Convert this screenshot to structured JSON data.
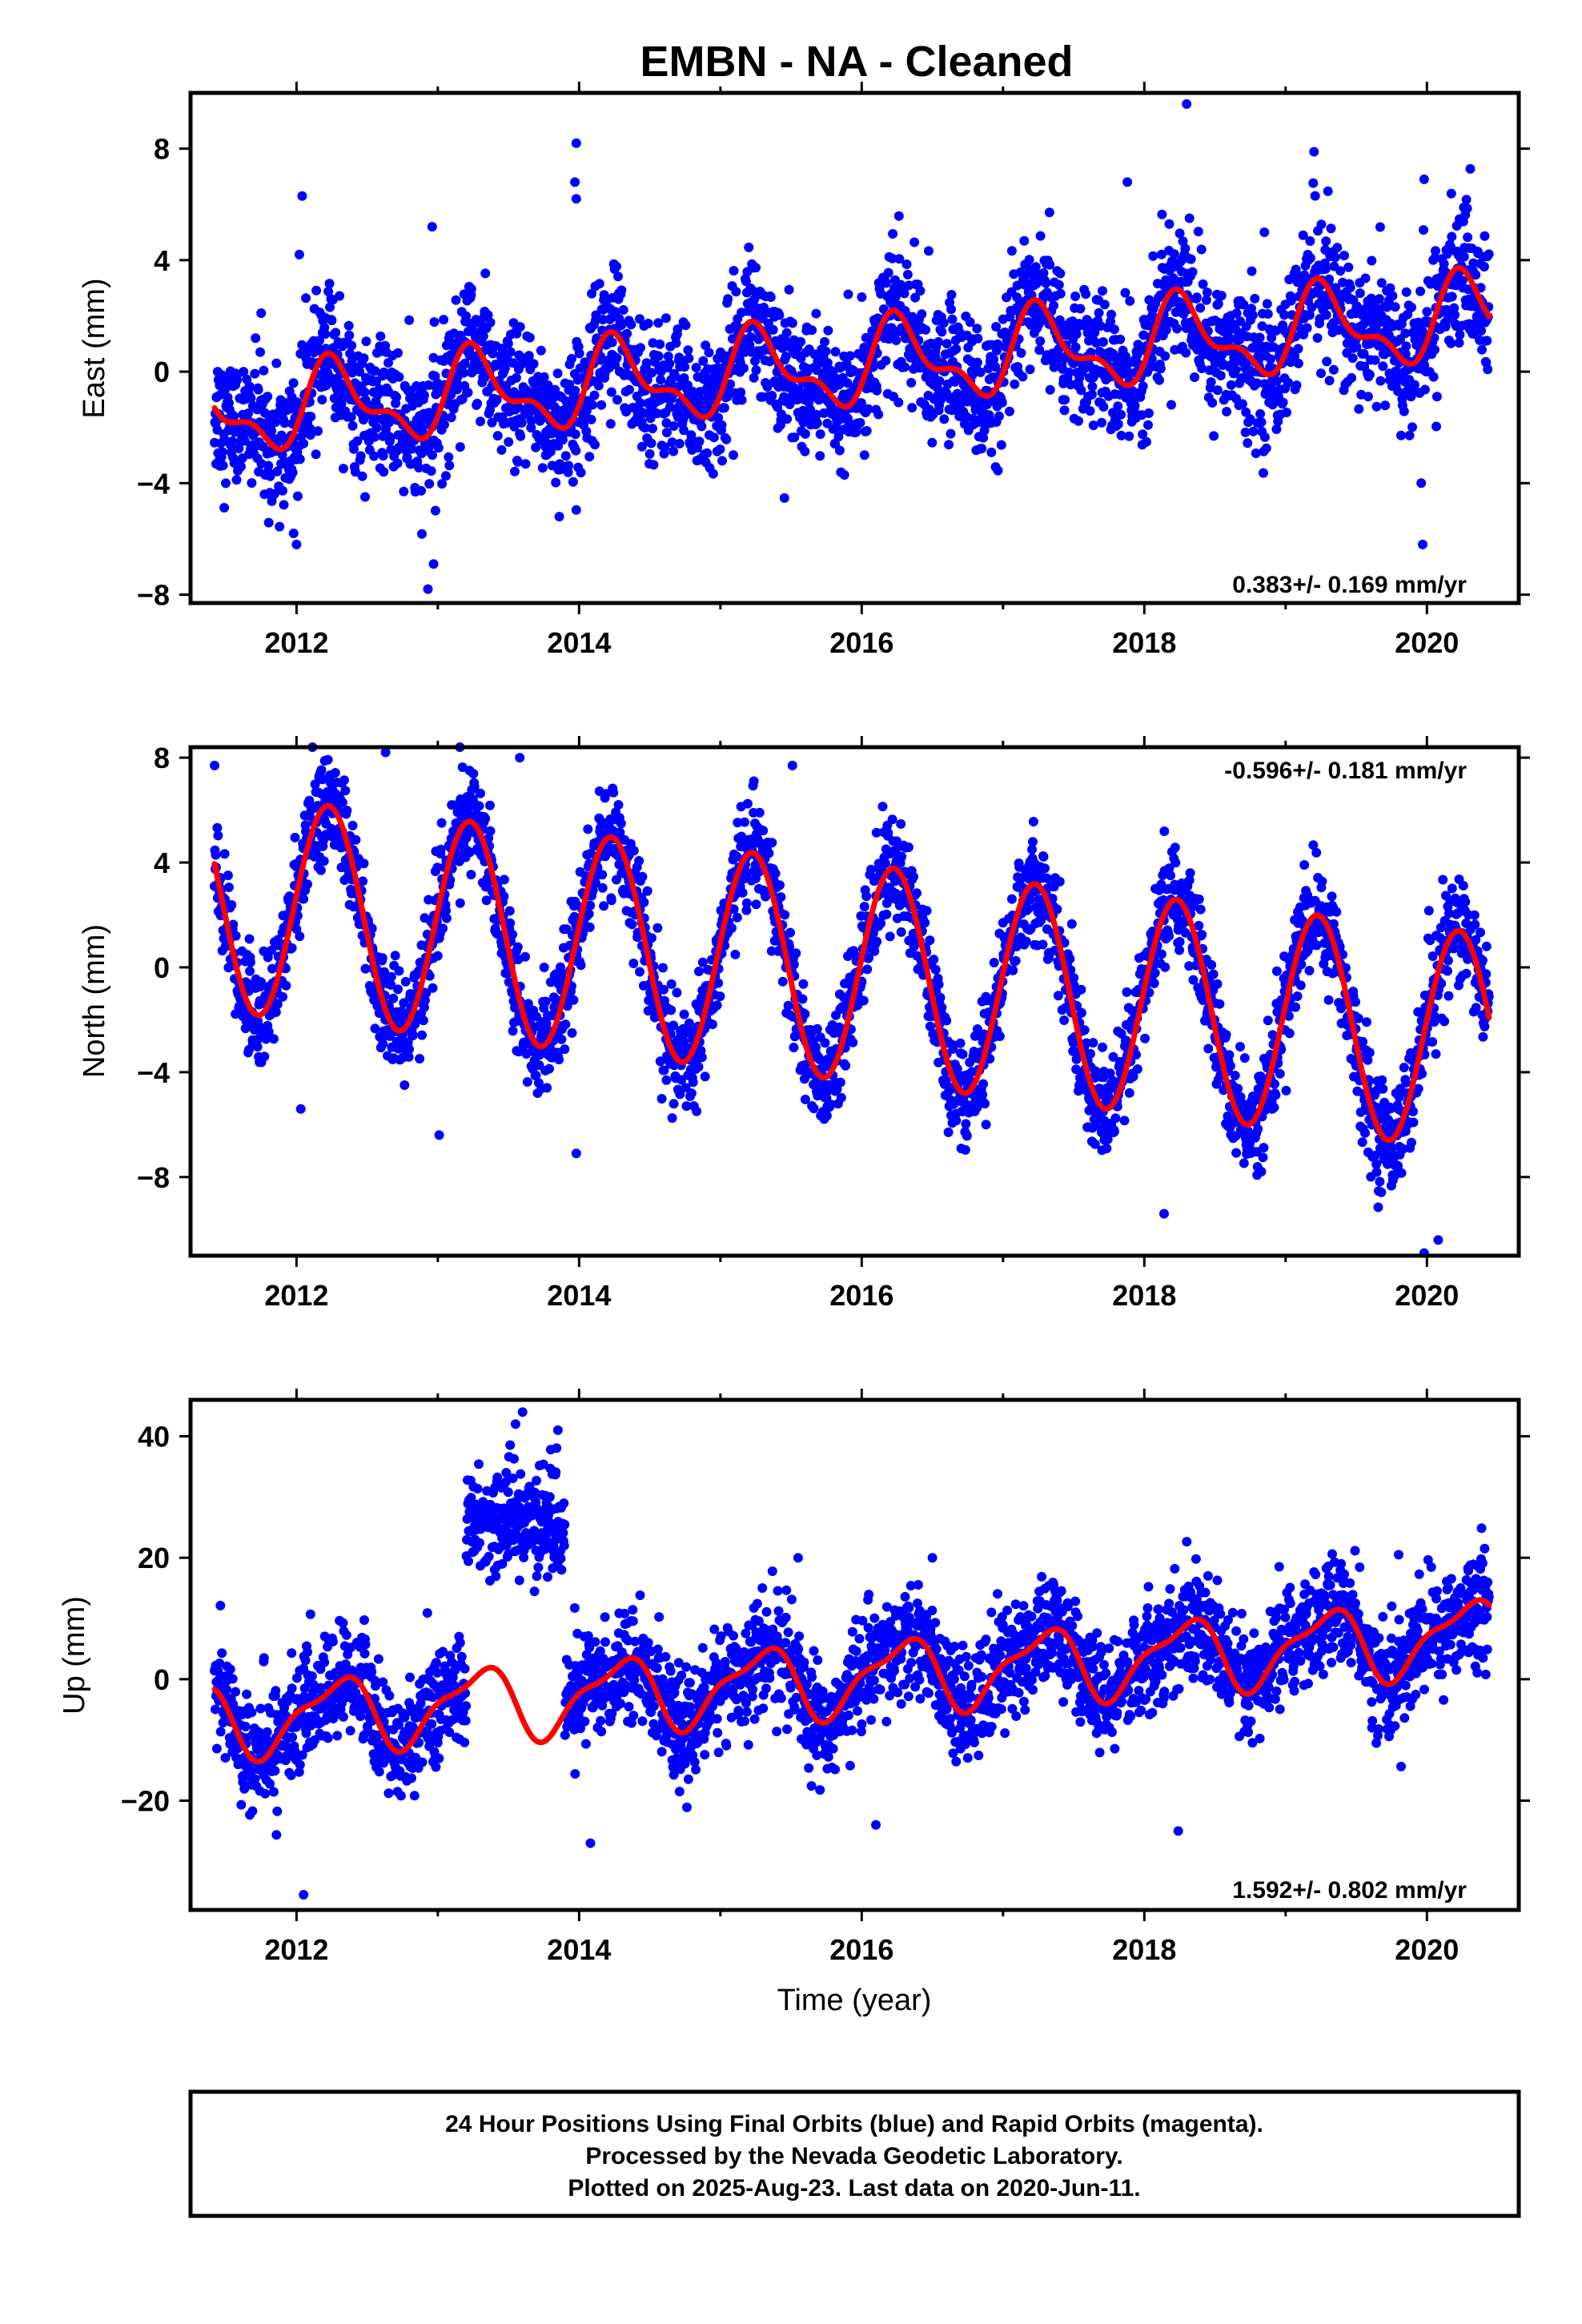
{
  "title": "EMBN  - NA - Cleaned",
  "chart_data": [
    {
      "type": "scatter",
      "panel": "east",
      "ylabel": "East (mm)",
      "xlim": [
        2011.25,
        2020.65
      ],
      "ylim": [
        -8.3,
        10.0
      ],
      "yticks": [
        -8,
        -4,
        0,
        4,
        8
      ],
      "xticks": [
        2012,
        2014,
        2016,
        2018,
        2020
      ],
      "rate_text": "0.383+/- 0.169 mm/yr",
      "rate_position": "bottom-right",
      "series": [
        {
          "color": "#0000ff",
          "style": "points",
          "x_range": [
            2011.42,
            2020.44
          ],
          "gaps": [],
          "outliers": [
            [
              2011.75,
              2.1
            ],
            [
              2012.04,
              6.3
            ],
            [
              2012.02,
              4.2
            ],
            [
              2012.96,
              5.2
            ],
            [
              2012.93,
              -7.8
            ],
            [
              2012.97,
              -6.9
            ],
            [
              2013.98,
              8.2
            ],
            [
              2013.97,
              6.8
            ],
            [
              2013.98,
              6.2
            ],
            [
              2013.86,
              -5.2
            ],
            [
              2017.88,
              6.8
            ],
            [
              2018.3,
              9.6
            ],
            [
              2018.85,
              5.0
            ],
            [
              2019.98,
              6.9
            ],
            [
              2019.97,
              -6.2
            ],
            [
              2019.96,
              -4.0
            ],
            [
              2012.0,
              -6.2
            ],
            [
              2011.98,
              -5.8
            ]
          ]
        },
        {
          "color": "#ff0000",
          "style": "line",
          "model": {
            "x0": 2011.42,
            "offset": -1.5,
            "trend": 0.383,
            "annual_cos": -0.2,
            "annual_sin": 1.3,
            "semi_cos": -0.5,
            "semi_sin": 0.4,
            "scatter": 1.2
          }
        }
      ]
    },
    {
      "type": "scatter",
      "panel": "north",
      "ylabel": "North (mm)",
      "xlim": [
        2011.25,
        2020.65
      ],
      "ylim": [
        -11.0,
        8.4
      ],
      "yticks": [
        -8,
        -4,
        0,
        4,
        8
      ],
      "xticks": [
        2012,
        2014,
        2016,
        2018,
        2020
      ],
      "rate_text": "-0.596+/- 0.181 mm/yr",
      "rate_position": "top-right",
      "series": [
        {
          "color": "#0000ff",
          "style": "points",
          "x_range": [
            2011.42,
            2020.44
          ],
          "gaps": [],
          "outliers": [
            [
              2012.63,
              8.2
            ],
            [
              2013.98,
              -7.1
            ],
            [
              2012.03,
              -5.4
            ],
            [
              2013.01,
              -6.4
            ],
            [
              2018.14,
              -9.4
            ],
            [
              2019.98,
              -10.9
            ],
            [
              2020.08,
              -10.4
            ],
            [
              2016.88,
              -6.0
            ],
            [
              2011.42,
              7.7
            ],
            [
              2015.51,
              7.7
            ],
            [
              2013.58,
              8.0
            ]
          ]
        },
        {
          "color": "#ff0000",
          "style": "line",
          "model": {
            "x0": 2011.42,
            "offset": 2.5,
            "trend": -0.596,
            "annual_cos": 0.6,
            "annual_sin": 4.1,
            "semi_cos": 0.0,
            "semi_sin": 0.0,
            "scatter": 1.0
          }
        }
      ]
    },
    {
      "type": "scatter",
      "panel": "up",
      "ylabel": "Up (mm)",
      "xlabel": "Time (year)",
      "xlim": [
        2011.25,
        2020.65
      ],
      "ylim": [
        -38.0,
        46.0
      ],
      "yticks": [
        -20,
        0,
        20,
        40
      ],
      "xticks": [
        2012,
        2014,
        2016,
        2018,
        2020
      ],
      "rate_text": "1.592+/- 0.802 mm/yr",
      "rate_position": "bottom-right",
      "series": [
        {
          "color": "#0000ff",
          "style": "points",
          "x_range": [
            2011.42,
            2020.44
          ],
          "offset_segments": [
            {
              "x_range": [
                2013.2,
                2013.9
              ],
              "level": 26.0,
              "spread": 6.0
            }
          ],
          "outliers": [
            [
              2013.6,
              44.0
            ],
            [
              2013.55,
              42.0
            ],
            [
              2013.85,
              41.0
            ],
            [
              2012.05,
              -35.5
            ],
            [
              2014.08,
              -27.0
            ],
            [
              2018.24,
              -25.0
            ],
            [
              2016.1,
              -24.0
            ],
            [
              2015.55,
              20.0
            ],
            [
              2016.5,
              20.0
            ],
            [
              2019.8,
              20.5
            ],
            [
              2011.77,
              3.5
            ]
          ]
        },
        {
          "color": "#ff0000",
          "style": "line",
          "model": {
            "x0": 2011.42,
            "offset": -7.0,
            "trend": 1.592,
            "annual_cos": -1.0,
            "annual_sin": 5.5,
            "semi_cos": 1.5,
            "semi_sin": -1.2,
            "scatter": 4.5
          }
        }
      ]
    }
  ],
  "caption": {
    "lines": [
      "24 Hour Positions Using Final Orbits (blue) and Rapid Orbits (magenta).",
      "Processed by the Nevada Geodetic Laboratory.",
      "Plotted on 2025-Aug-23. Last data on 2020-Jun-11."
    ]
  }
}
